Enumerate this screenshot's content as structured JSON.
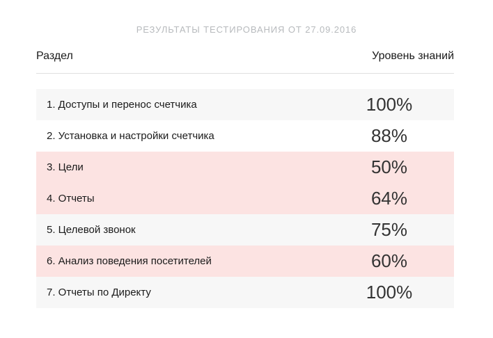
{
  "title": "РЕЗУЛЬТАТЫ ТЕСТИРОВАНИЯ ОТ 27.09.2016",
  "table": {
    "columns": [
      "Раздел",
      "Уровень знаний"
    ],
    "rows": [
      {
        "label": "1. Доступы и перенос счетчика",
        "value": "100%",
        "variant": "stripe"
      },
      {
        "label": "2. Установка и настройки счетчика",
        "value": "88%",
        "variant": "plain"
      },
      {
        "label": "3. Цели",
        "value": "50%",
        "variant": "highlight"
      },
      {
        "label": "4. Отчеты",
        "value": "64%",
        "variant": "highlight"
      },
      {
        "label": "5. Целевой звонок",
        "value": "75%",
        "variant": "stripe"
      },
      {
        "label": "6. Анализ поведения посетителей",
        "value": "60%",
        "variant": "highlight"
      },
      {
        "label": "7. Отчеты по Директу",
        "value": "100%",
        "variant": "stripe"
      }
    ]
  },
  "colors": {
    "background": "#ffffff",
    "row_stripe": "#f7f7f7",
    "row_plain": "#ffffff",
    "row_highlight": "#fce3e2",
    "title_text": "#b7babd",
    "header_text": "#1a1a1a",
    "label_text": "#1a1a1a",
    "score_text": "#333333",
    "divider": "#e0e0e0"
  }
}
